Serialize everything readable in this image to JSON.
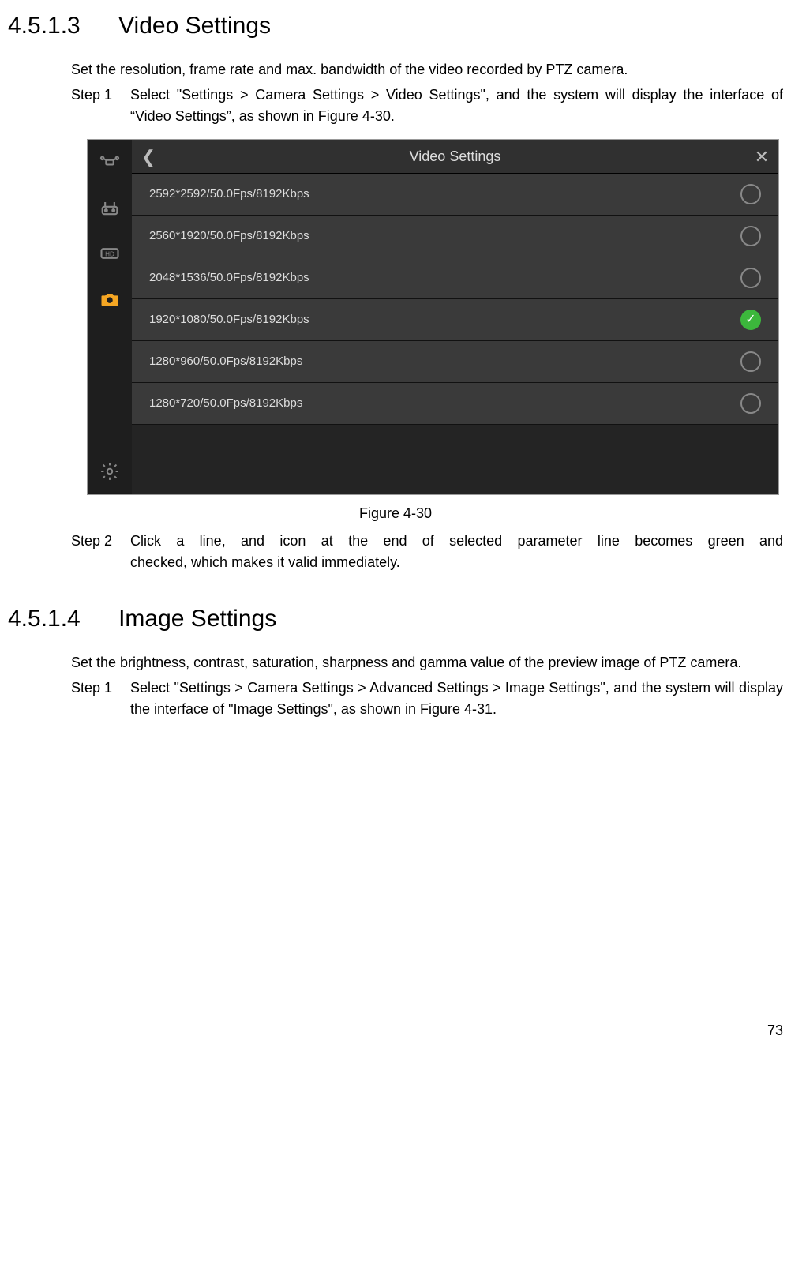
{
  "section1": {
    "number": "4.5.1.3",
    "title": "Video Settings",
    "intro": "Set the resolution, frame rate and max. bandwidth of the video recorded by PTZ camera.",
    "step1_label": "Step 1",
    "step1_text": "Select \"Settings > Camera Settings > Video Settings\", and the system will display the interface of “Video Settings”, as shown in Figure 4-30.",
    "caption": "Figure 4-30",
    "step2_label": "Step 2",
    "step2_line1": "Click a line, and icon at the end of selected parameter line becomes green and",
    "step2_line2": "checked, which makes it valid immediately."
  },
  "screenshot": {
    "title": "Video Settings",
    "options": [
      {
        "label": "2592*2592/50.0Fps/8192Kbps",
        "selected": false
      },
      {
        "label": "2560*1920/50.0Fps/8192Kbps",
        "selected": false
      },
      {
        "label": "2048*1536/50.0Fps/8192Kbps",
        "selected": false
      },
      {
        "label": "1920*1080/50.0Fps/8192Kbps",
        "selected": true
      },
      {
        "label": "1280*960/50.0Fps/8192Kbps",
        "selected": false
      },
      {
        "label": "1280*720/50.0Fps/8192Kbps",
        "selected": false
      }
    ]
  },
  "section2": {
    "number": "4.5.1.4",
    "title": "Image Settings",
    "intro": "Set the brightness, contrast, saturation, sharpness and gamma value of the preview image of PTZ camera.",
    "step1_label": "Step 1",
    "step1_text": "Select \"Settings > Camera Settings > Advanced Settings > Image Settings\", and the system will display the interface of \"Image Settings\", as shown in Figure 4-31."
  },
  "page_number": "73"
}
